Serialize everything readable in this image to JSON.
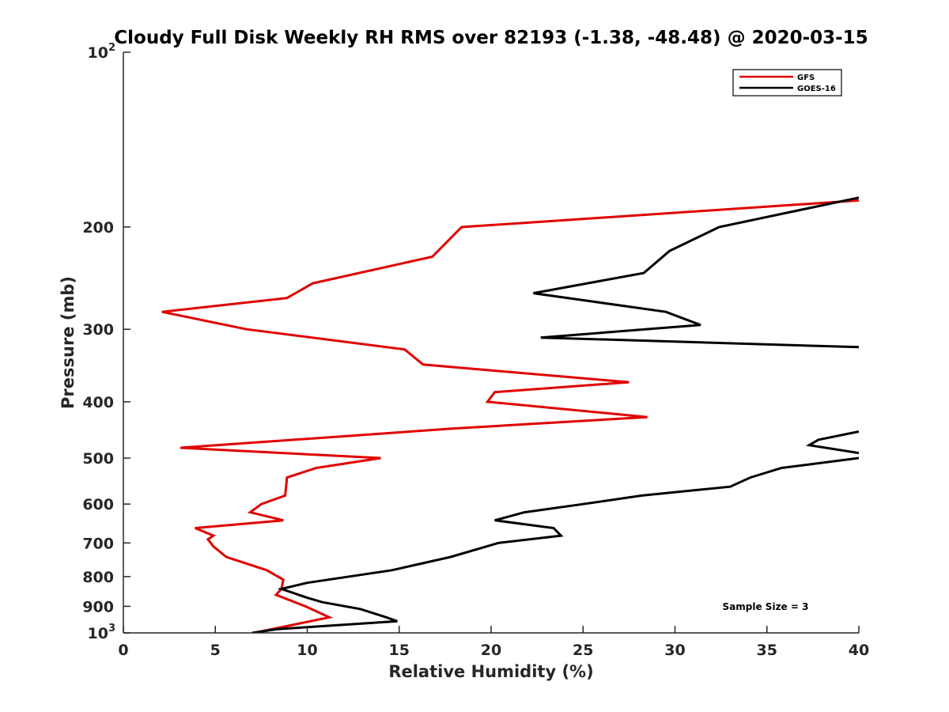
{
  "chart_data": {
    "type": "line",
    "title": "Cloudy Full Disk Weekly RH RMS over 82193 (-1.38, -48.48) @ 2020-03-15",
    "xlabel": "Relative Humidity (%)",
    "ylabel": "Pressure (mb)",
    "xlim": [
      0,
      40
    ],
    "ylim": [
      100,
      1000
    ],
    "yscale": "log",
    "y_reversed": true,
    "x_ticks": [
      "0",
      "5",
      "10",
      "15",
      "20",
      "25",
      "30",
      "35",
      "40"
    ],
    "y_ticks": [
      {
        "value": 100,
        "base": "10",
        "exp": "2"
      },
      {
        "value": 200,
        "text": "200"
      },
      {
        "value": 300,
        "text": "300"
      },
      {
        "value": 400,
        "text": "400"
      },
      {
        "value": 500,
        "text": "500"
      },
      {
        "value": 600,
        "text": "600"
      },
      {
        "value": 700,
        "text": "700"
      },
      {
        "value": 800,
        "text": "800"
      },
      {
        "value": 900,
        "text": "900"
      },
      {
        "value": 1000,
        "base": "10",
        "exp": "3"
      }
    ],
    "legend_position": "top-right",
    "grid": false,
    "annotation": "Sample Size = 3",
    "series": [
      {
        "name": "GFS",
        "color": "#e00000",
        "points": [
          [
            40,
            180
          ],
          [
            18.4,
            200
          ],
          [
            16.8,
            225
          ],
          [
            10.3,
            250
          ],
          [
            8.9,
            265
          ],
          [
            2.1,
            280
          ],
          [
            6.7,
            300
          ],
          [
            15.3,
            325
          ],
          [
            16.3,
            345
          ],
          [
            27.5,
            370
          ],
          [
            20.2,
            385
          ],
          [
            19.8,
            400
          ],
          [
            28.5,
            425
          ],
          [
            17.8,
            445
          ],
          [
            3.1,
            480
          ],
          [
            14.0,
            500
          ],
          [
            10.5,
            520
          ],
          [
            8.9,
            540
          ],
          [
            8.8,
            580
          ],
          [
            7.5,
            600
          ],
          [
            6.9,
            620
          ],
          [
            8.7,
            640
          ],
          [
            3.9,
            660
          ],
          [
            4.9,
            680
          ],
          [
            4.6,
            690
          ],
          [
            4.9,
            710
          ],
          [
            5.6,
            740
          ],
          [
            7.8,
            780
          ],
          [
            8.7,
            810
          ],
          [
            8.6,
            840
          ],
          [
            8.3,
            860
          ],
          [
            9.9,
            900
          ],
          [
            11.2,
            940
          ],
          [
            7.1,
            1000
          ]
        ]
      },
      {
        "name": "GOES-16",
        "color": "#000000",
        "points": [
          [
            40,
            178
          ],
          [
            32.4,
            200
          ],
          [
            29.7,
            220
          ],
          [
            28.3,
            240
          ],
          [
            22.3,
            260
          ],
          [
            29.5,
            280
          ],
          [
            31.4,
            295
          ],
          [
            22.7,
            310
          ],
          [
            40,
            322
          ]
        ],
        "segments": [
          [
            [
              40,
              450
            ],
            [
              37.8,
              465
            ],
            [
              37.3,
              475
            ],
            [
              40,
              490
            ]
          ],
          [
            [
              40,
              500
            ],
            [
              35.8,
              520
            ],
            [
              34.1,
              540
            ],
            [
              33.0,
              560
            ],
            [
              28.2,
              580
            ],
            [
              25.0,
              600
            ],
            [
              21.8,
              620
            ],
            [
              20.2,
              640
            ],
            [
              23.4,
              660
            ],
            [
              23.8,
              680
            ],
            [
              20.4,
              700
            ],
            [
              17.8,
              740
            ],
            [
              14.6,
              780
            ],
            [
              10.0,
              820
            ],
            [
              8.6,
              840
            ],
            [
              10.0,
              870
            ],
            [
              10.8,
              885
            ],
            [
              12.9,
              910
            ],
            [
              14.3,
              940
            ],
            [
              14.9,
              955
            ],
            [
              8.4,
              985
            ],
            [
              7.0,
              1000
            ]
          ]
        ]
      }
    ]
  }
}
